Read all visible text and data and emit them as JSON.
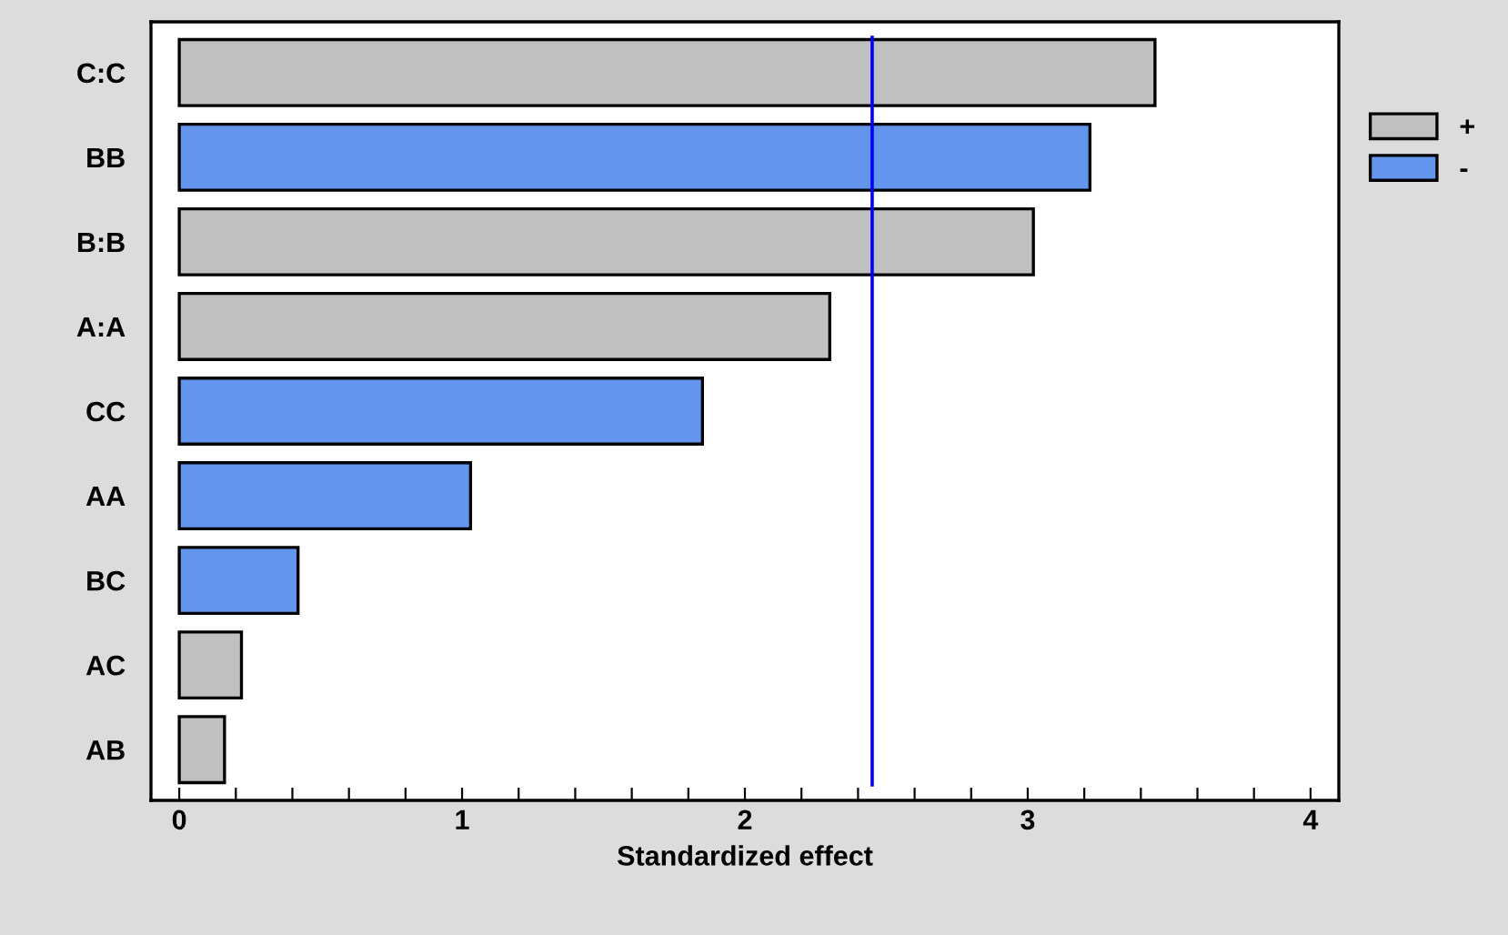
{
  "chart_data": {
    "type": "bar",
    "orientation": "horizontal",
    "xlabel": "Standardized effect",
    "categories": [
      "C:C",
      "BB",
      "B:B",
      "A:A",
      "CC",
      "AA",
      "BC",
      "AC",
      "AB"
    ],
    "series": [
      {
        "name": "+",
        "color": "#c0c0c0",
        "values": [
          3.45,
          null,
          3.02,
          2.3,
          null,
          null,
          null,
          0.22,
          0.16
        ]
      },
      {
        "name": "-",
        "color": "#6495ed",
        "values": [
          null,
          3.22,
          null,
          null,
          1.85,
          1.03,
          0.42,
          null,
          null
        ]
      }
    ],
    "xlim": [
      -0.1,
      4.1
    ],
    "xticks": [
      0,
      {
        "value": 0.2,
        "label": null
      },
      {
        "value": 0.4,
        "label": null
      },
      {
        "value": 0.6,
        "label": null
      },
      {
        "value": 0.8,
        "label": null
      },
      1,
      {
        "value": 1.2,
        "label": null
      },
      {
        "value": 1.4,
        "label": null
      },
      {
        "value": 1.6,
        "label": null
      },
      {
        "value": 1.8,
        "label": null
      },
      2,
      {
        "value": 2.2,
        "label": null
      },
      {
        "value": 2.4,
        "label": null
      },
      {
        "value": 2.6,
        "label": null
      },
      {
        "value": 2.8,
        "label": null
      },
      3,
      {
        "value": 3.2,
        "label": null
      },
      {
        "value": 3.4,
        "label": null
      },
      {
        "value": 3.6,
        "label": null
      },
      {
        "value": 3.8,
        "label": null
      },
      4
    ],
    "ref_lines": [
      {
        "axis": "x",
        "value": 2.45,
        "color": "#0000ff"
      }
    ],
    "legend": "top right",
    "grid": false
  }
}
